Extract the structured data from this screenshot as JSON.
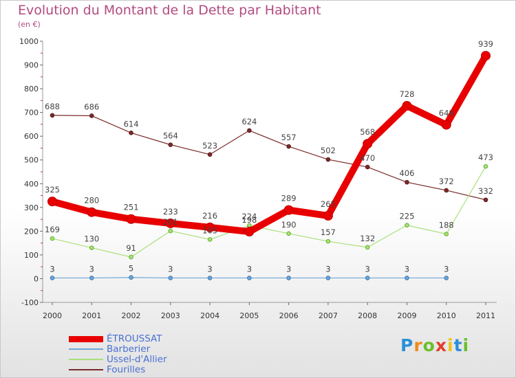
{
  "header": {
    "title": "Evolution du Montant de la Dette par Habitant",
    "subtitle": "(en €)"
  },
  "brand": {
    "letters": [
      "P",
      "r",
      "o",
      "x",
      "i",
      "t",
      "i"
    ],
    "colors": [
      "#2b8fd6",
      "#f08a1c",
      "#6bbf2a",
      "#e23d2a",
      "#f0c21c",
      "#2b8fd6",
      "#6bbf2a"
    ]
  },
  "chart_data": {
    "type": "line",
    "x": [
      "2000",
      "2001",
      "2002",
      "2003",
      "2004",
      "2005",
      "2006",
      "2007",
      "2008",
      "2009",
      "2010",
      "2011"
    ],
    "ylim": [
      -100,
      1000
    ],
    "yticks": [
      "-100",
      "0",
      "100",
      "200",
      "300",
      "400",
      "500",
      "600",
      "700",
      "800",
      "900",
      "1000"
    ],
    "grid": false,
    "legend_position": "bottom-left",
    "series": [
      {
        "name": "ÉTROUSSAT",
        "color": "#e80000",
        "values": [
          325,
          280,
          251,
          233,
          216,
          198,
          289,
          265,
          568,
          728,
          648,
          939
        ],
        "labels": [
          "325",
          "280",
          "251",
          "233",
          "216",
          "198",
          "289",
          "265",
          "568",
          "728",
          "648",
          "939"
        ]
      },
      {
        "name": "Barberier",
        "color": "#6ea6d6",
        "values": [
          3,
          3,
          5,
          3,
          3,
          3,
          3,
          3,
          3,
          3,
          3,
          null
        ],
        "labels": [
          "3",
          "3",
          "5",
          "3",
          "3",
          "3",
          "3",
          "3",
          "3",
          "3",
          "3",
          ""
        ]
      },
      {
        "name": "Ussel-d'Allier",
        "color": "#a8e07a",
        "values": [
          169,
          130,
          91,
          201,
          165,
          224,
          190,
          157,
          132,
          225,
          188,
          473
        ],
        "labels": [
          "169",
          "130",
          "91",
          "201",
          "165",
          "224",
          "190",
          "157",
          "132",
          "225",
          "188",
          "473"
        ]
      },
      {
        "name": "Fourilles",
        "color": "#7a2a2a",
        "values": [
          688,
          686,
          614,
          564,
          523,
          624,
          557,
          502,
          470,
          406,
          372,
          332
        ],
        "labels": [
          "688",
          "686",
          "614",
          "564",
          "523",
          "624",
          "557",
          "502",
          "470",
          "406",
          "372",
          "332"
        ]
      }
    ]
  }
}
